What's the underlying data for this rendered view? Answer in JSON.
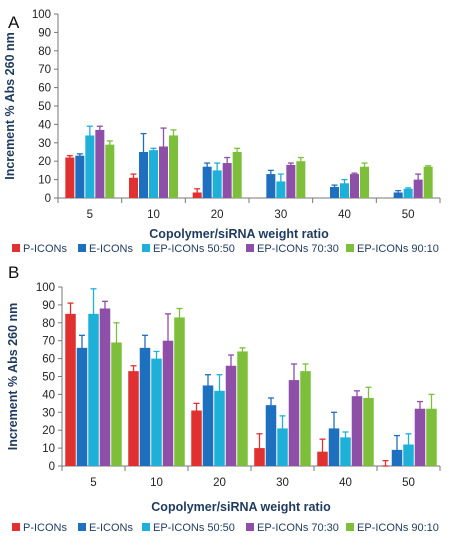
{
  "figure": {
    "panels": [
      "A",
      "B"
    ]
  },
  "chart_data": [
    {
      "type": "bar",
      "panel": "A",
      "xlabel": "Copolymer/siRNA weight ratio",
      "ylabel": "Increment % Abs 260 nm",
      "ylim": [
        0,
        100
      ],
      "yticks": [
        0,
        10,
        20,
        30,
        40,
        50,
        60,
        70,
        80,
        90,
        100
      ],
      "categories": [
        "5",
        "10",
        "20",
        "30",
        "40",
        "50"
      ],
      "grid": false,
      "legend": "bottom",
      "series": [
        {
          "name": "P-ICONs",
          "color": "#e03030",
          "values": [
            22,
            11,
            3,
            null,
            null,
            null
          ],
          "errors": [
            1,
            2,
            2,
            null,
            null,
            null
          ]
        },
        {
          "name": "E-ICONs",
          "color": "#1f6fbf",
          "values": [
            23,
            25,
            17,
            13,
            6,
            3
          ],
          "errors": [
            1,
            10,
            2,
            2,
            1,
            1
          ]
        },
        {
          "name": "EP-ICONs 50:50",
          "color": "#1fb0d8",
          "values": [
            34,
            26,
            15,
            9,
            8,
            5
          ],
          "errors": [
            5,
            1,
            4,
            4,
            2,
            0.5
          ]
        },
        {
          "name": "EP-ICONs 70:30",
          "color": "#8e4fa8",
          "values": [
            37,
            28,
            19,
            18,
            13,
            10
          ],
          "errors": [
            2,
            10,
            3,
            1,
            0.5,
            3
          ]
        },
        {
          "name": "EP-ICONs 90:10",
          "color": "#7dbf3a",
          "values": [
            29,
            34,
            25,
            20,
            17,
            17
          ],
          "errors": [
            2,
            3,
            2,
            2,
            2,
            0.5
          ]
        }
      ]
    },
    {
      "type": "bar",
      "panel": "B",
      "xlabel": "Copolymer/siRNA weight ratio",
      "ylabel": "Increment % Abs 260 nm",
      "ylim": [
        0,
        100
      ],
      "yticks": [
        0,
        10,
        20,
        30,
        40,
        50,
        60,
        70,
        80,
        90,
        100
      ],
      "categories": [
        "5",
        "10",
        "20",
        "30",
        "40",
        "50"
      ],
      "grid": false,
      "legend": "bottom",
      "series": [
        {
          "name": "P-ICONs",
          "color": "#e03030",
          "values": [
            85,
            53,
            31,
            10,
            8,
            0
          ],
          "errors": [
            6,
            3,
            4,
            8,
            7,
            3
          ]
        },
        {
          "name": "E-ICONs",
          "color": "#1f6fbf",
          "values": [
            66,
            66,
            45,
            34,
            21,
            9
          ],
          "errors": [
            7,
            7,
            6,
            4,
            9,
            8
          ]
        },
        {
          "name": "EP-ICONs 50:50",
          "color": "#1fb0d8",
          "values": [
            85,
            60,
            42,
            21,
            16,
            12
          ],
          "errors": [
            14,
            4,
            9,
            7,
            3,
            6
          ]
        },
        {
          "name": "EP-ICONs 70:30",
          "color": "#8e4fa8",
          "values": [
            88,
            70,
            56,
            48,
            39,
            32
          ],
          "errors": [
            4,
            15,
            6,
            9,
            3,
            4
          ]
        },
        {
          "name": "EP-ICONs 90:10",
          "color": "#7dbf3a",
          "values": [
            69,
            83,
            64,
            53,
            38,
            32
          ],
          "errors": [
            11,
            5,
            2,
            4,
            6,
            8
          ]
        }
      ]
    }
  ]
}
